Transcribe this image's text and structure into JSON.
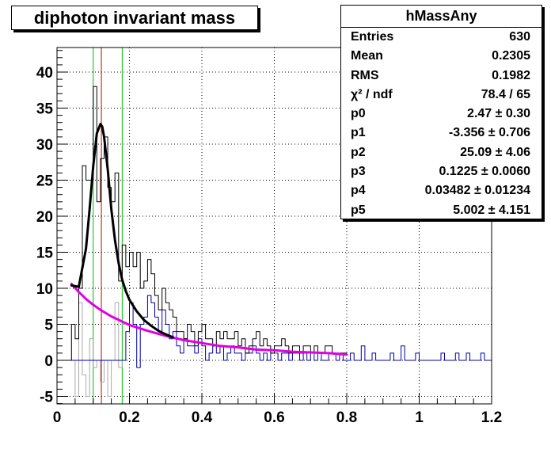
{
  "title": "diphoton invariant mass",
  "stats_box": {
    "name": "hMassAny",
    "rows": [
      {
        "key": "Entries",
        "value": "630"
      },
      {
        "key": "Mean",
        "value": "0.2305"
      },
      {
        "key": "RMS",
        "value": "0.1982"
      },
      {
        "key": "χ² / ndf",
        "value": "78.4 / 65"
      },
      {
        "key": "p0",
        "value": "2.47 ± 0.30"
      },
      {
        "key": "p1",
        "value": "-3.356 ± 0.706"
      },
      {
        "key": "p2",
        "value": "25.09 ± 4.06"
      },
      {
        "key": "p3",
        "value": "0.1225 ± 0.0060"
      },
      {
        "key": "p4",
        "value": "0.03482 ± 0.01234"
      },
      {
        "key": "p5",
        "value": "5.002 ± 4.151"
      }
    ]
  },
  "colors": {
    "histogram_total": "#000000",
    "histogram_signal_region": "#0000aa",
    "histogram_sideband": "#aaaaaa",
    "fit_total": "#000000",
    "fit_background": "#e000e0",
    "window_lines": "#00bb00",
    "peak_line": "#cc0000",
    "grid": "#000000"
  },
  "chart_data": {
    "type": "line",
    "xlim": [
      0,
      1.2
    ],
    "ylim": [
      -6,
      44
    ],
    "x_ticks": [
      "0",
      "0.2",
      "0.4",
      "0.6",
      "0.8",
      "1",
      "1.2"
    ],
    "y_ticks": [
      "-5",
      "0",
      "5",
      "10",
      "15",
      "20",
      "25",
      "30",
      "35",
      "40"
    ],
    "grid": true,
    "bin_width": 0.01,
    "vertical_lines": {
      "peak": 0.1225,
      "window": [
        0.1,
        0.18
      ]
    },
    "series": [
      {
        "style": "step",
        "x": [
          0.0,
          0.01,
          0.02,
          0.03,
          0.04,
          0.05,
          0.06,
          0.07,
          0.08,
          0.09,
          0.1,
          0.11,
          0.12,
          0.13,
          0.14,
          0.15,
          0.16,
          0.17,
          0.18,
          0.19,
          0.2,
          0.21,
          0.22,
          0.23,
          0.24,
          0.25,
          0.26,
          0.27,
          0.28,
          0.29,
          0.3,
          0.31,
          0.32,
          0.33,
          0.34,
          0.35,
          0.36,
          0.37,
          0.38,
          0.39,
          0.4,
          0.41,
          0.42,
          0.43,
          0.44,
          0.45,
          0.46,
          0.47,
          0.48,
          0.49,
          0.5,
          0.51,
          0.52,
          0.53,
          0.54,
          0.55,
          0.56,
          0.57,
          0.58,
          0.59,
          0.6,
          0.61,
          0.62,
          0.63,
          0.64,
          0.65,
          0.66,
          0.67,
          0.68,
          0.69,
          0.7,
          0.71,
          0.72,
          0.73,
          0.74,
          0.75,
          0.76,
          0.77,
          0.78,
          0.79
        ],
        "y": [
          0,
          0,
          0,
          0,
          5,
          3,
          10,
          27,
          25,
          25,
          38,
          22,
          28,
          31,
          24,
          22,
          26,
          11,
          16,
          13,
          15,
          13,
          15,
          10,
          11,
          14,
          12,
          9,
          7,
          10,
          8,
          7,
          6,
          4,
          4,
          3,
          5,
          4,
          2,
          4,
          5,
          3,
          3,
          2,
          4,
          3,
          4,
          3,
          3,
          4,
          2,
          3,
          1,
          2,
          3,
          4,
          2,
          3,
          2,
          1,
          2,
          2,
          3,
          2,
          1,
          2,
          2,
          1,
          2,
          2,
          1,
          2,
          1,
          1,
          2,
          2,
          1,
          1,
          1,
          1
        ]
      },
      {
        "style": "step",
        "x": [
          0.0,
          0.01,
          0.02,
          0.03,
          0.04,
          0.05,
          0.06,
          0.07,
          0.08,
          0.09,
          0.1,
          0.11,
          0.12,
          0.13,
          0.14,
          0.15,
          0.16,
          0.17,
          0.18,
          0.19,
          0.2,
          0.21,
          0.22,
          0.23,
          0.24,
          0.25,
          0.26,
          0.27,
          0.28,
          0.29,
          0.3,
          0.31,
          0.32,
          0.33,
          0.34,
          0.35,
          0.36,
          0.37,
          0.38,
          0.39,
          0.4,
          0.41,
          0.42,
          0.43,
          0.44,
          0.45,
          0.46,
          0.47,
          0.48,
          0.49,
          0.5,
          0.51,
          0.52,
          0.53,
          0.54,
          0.55,
          0.56,
          0.57,
          0.58,
          0.59,
          0.6,
          0.61,
          0.62,
          0.63,
          0.64,
          0.65,
          0.66,
          0.67,
          0.68,
          0.69,
          0.7,
          0.71,
          0.72,
          0.73,
          0.74,
          0.75,
          0.76,
          0.77,
          0.78,
          0.79,
          0.8,
          0.81,
          0.82,
          0.83,
          0.84,
          0.85,
          0.86,
          0.87,
          0.88,
          0.89,
          0.9,
          0.91,
          0.92,
          0.93,
          0.94,
          0.95,
          0.96,
          0.97,
          0.98,
          0.99,
          1.0,
          1.01,
          1.02,
          1.03,
          1.04,
          1.05,
          1.06,
          1.07,
          1.08,
          1.09,
          1.1,
          1.11,
          1.12,
          1.13,
          1.14,
          1.15,
          1.16,
          1.17,
          1.18,
          1.19
        ],
        "y": [
          0,
          0,
          0,
          0,
          0,
          0,
          0,
          0,
          0,
          0,
          0,
          0,
          0,
          0,
          0,
          0,
          0,
          0,
          0,
          4,
          8,
          5,
          -1,
          5,
          6,
          9,
          8,
          6,
          4,
          7,
          5,
          3,
          4,
          2,
          1,
          3,
          2,
          2,
          1,
          3,
          2,
          0,
          1,
          2,
          1,
          2,
          0,
          1,
          2,
          1,
          1,
          0,
          1,
          1,
          2,
          1,
          0,
          1,
          0,
          1,
          1,
          0,
          1,
          1,
          0,
          1,
          1,
          0,
          1,
          0,
          1,
          0,
          1,
          0,
          0,
          1,
          1,
          0,
          1,
          0,
          0,
          1,
          0,
          0,
          2,
          0,
          0,
          1,
          0,
          0,
          0,
          0,
          1,
          0,
          0,
          2,
          0,
          0,
          0,
          1,
          0,
          0,
          0,
          0,
          0,
          0,
          1,
          0,
          0,
          0,
          1,
          0,
          0,
          1,
          0,
          0,
          0,
          1,
          0,
          0
        ]
      },
      {
        "style": "step",
        "x": [
          0.03,
          0.04,
          0.05,
          0.06,
          0.07,
          0.08,
          0.09,
          0.1,
          0.11,
          0.12,
          0.13,
          0.14,
          0.15,
          0.16,
          0.17,
          0.18
        ],
        "y": [
          0,
          0,
          -5,
          8,
          -2,
          -5,
          3,
          -1,
          0,
          -3,
          0,
          -5,
          0,
          8,
          -1,
          0
        ]
      },
      {
        "style": "line",
        "x": [
          0.04,
          0.06,
          0.08,
          0.09,
          0.1,
          0.11,
          0.12,
          0.125,
          0.13,
          0.14,
          0.15,
          0.16,
          0.17,
          0.18,
          0.19,
          0.2,
          0.22,
          0.24,
          0.26,
          0.28,
          0.3,
          0.32
        ],
        "y": [
          10.4,
          10.2,
          15.5,
          21,
          27,
          31.5,
          32.8,
          32.4,
          31,
          26.5,
          21,
          16.7,
          13.5,
          11.2,
          9.6,
          8.4,
          6.8,
          5.6,
          4.8,
          4.1,
          3.6,
          3.2
        ]
      },
      {
        "style": "line",
        "x": [
          0.04,
          0.06,
          0.08,
          0.1,
          0.12,
          0.15,
          0.2,
          0.25,
          0.3,
          0.35,
          0.4,
          0.45,
          0.5,
          0.55,
          0.6,
          0.65,
          0.7,
          0.75,
          0.8
        ],
        "y": [
          10.6,
          9.5,
          8.5,
          7.7,
          7.0,
          6.1,
          4.9,
          4.1,
          3.4,
          2.8,
          2.4,
          2.0,
          1.8,
          1.5,
          1.4,
          1.2,
          1.1,
          1.0,
          0.8
        ]
      }
    ]
  }
}
